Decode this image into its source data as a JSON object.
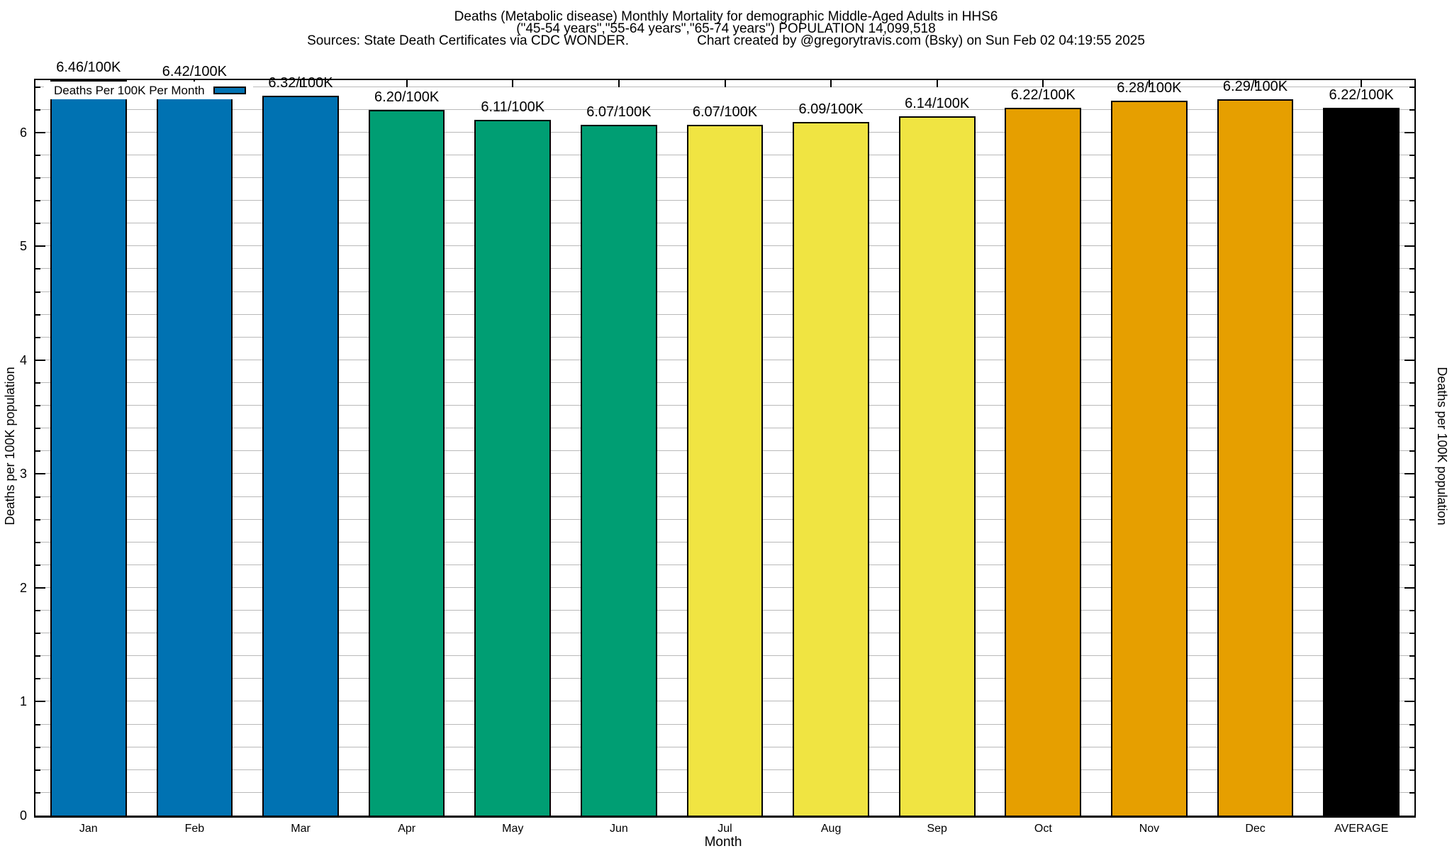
{
  "header": {
    "title_line1": "Deaths (Metabolic disease) Monthly Mortality for demographic Middle-Aged Adults in HHS6",
    "title_line2": "(\"45-54 years\",\"55-64 years\",\"65-74 years\") POPULATION 14,099,518",
    "title_line3_left": "Sources: State Death Certificates via CDC WONDER.",
    "title_line3_right": "Chart created by @gregorytravis.com (Bsky) on Sun Feb 02 04:19:55 2025"
  },
  "legend": {
    "label": "Deaths Per 100K Per Month",
    "swatch_color": "#0072B2"
  },
  "chart_data": {
    "type": "bar",
    "title": "Deaths (Metabolic disease) Monthly Mortality for demographic Middle-Aged Adults in HHS6",
    "subtitle": "(\"45-54 years\",\"55-64 years\",\"65-74 years\") POPULATION 14,099,518",
    "categories": [
      "Jan",
      "Feb",
      "Mar",
      "Apr",
      "May",
      "Jun",
      "Jul",
      "Aug",
      "Sep",
      "Oct",
      "Nov",
      "Dec",
      "AVERAGE"
    ],
    "values": [
      6.46,
      6.42,
      6.32,
      6.2,
      6.11,
      6.07,
      6.07,
      6.09,
      6.14,
      6.22,
      6.28,
      6.29,
      6.22
    ],
    "bar_labels": [
      "6.46/100K",
      "6.42/100K",
      "6.32/100K",
      "6.20/100K",
      "6.11/100K",
      "6.07/100K",
      "6.07/100K",
      "6.09/100K",
      "6.14/100K",
      "6.22/100K",
      "6.28/100K",
      "6.29/100K",
      "6.22/100K"
    ],
    "label_suffix": "/100K",
    "bar_color_keys": [
      "blue",
      "blue",
      "blue",
      "green",
      "green",
      "green",
      "yellow",
      "yellow",
      "yellow",
      "orange",
      "orange",
      "orange",
      "black"
    ],
    "palette": {
      "blue": "#0072B2",
      "green": "#009E73",
      "yellow": "#F0E442",
      "orange": "#E69F00",
      "black": "#000000"
    },
    "xlabel": "Month",
    "ylabel": "Deaths per 100K population",
    "y2label": "Deaths per 100K population",
    "ylim": [
      0,
      6.46
    ],
    "yticks": [
      0,
      1,
      2,
      3,
      4,
      5,
      6
    ],
    "y_minor_step": 0.2,
    "grid": "horizontal-minor",
    "gridline_color": "#b9b9b9",
    "legend_entry": "Deaths Per 100K Per Month",
    "legend_position": "top-left-inside"
  }
}
